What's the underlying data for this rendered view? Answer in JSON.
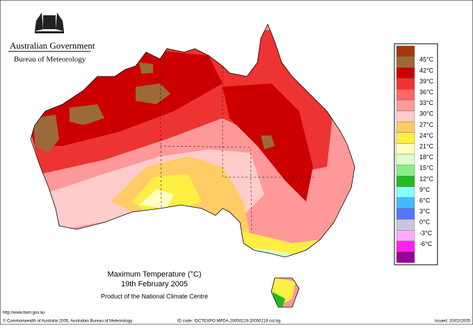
{
  "header": {
    "title": "Australian Government",
    "subtitle": "Bureau of Meteorology"
  },
  "legend": {
    "colors": [
      "#a33a0e",
      "#9c6a3a",
      "#cc0000",
      "#ee3333",
      "#ff6666",
      "#ff9999",
      "#ffcccc",
      "#ffcc66",
      "#ffee44",
      "#ffffc0",
      "#ddffcc",
      "#88ee88",
      "#22bb22",
      "#88ffff",
      "#44bbff",
      "#5577ff",
      "#c8c8d8",
      "#ffaaff",
      "#ff22ee",
      "#990099"
    ],
    "labels": [
      "45°C",
      "42°C",
      "39°C",
      "36°C",
      "33°C",
      "30°C",
      "27°C",
      "24°C",
      "21°C",
      "18°C",
      "15°C",
      "12°C",
      "9°C",
      "6°C",
      "3°C",
      "0°C",
      "-3°C",
      "-6°C"
    ]
  },
  "caption": {
    "title": "Maximum Temperature (°C)",
    "date": "19th February 2005",
    "credit": "Product of the National Climate Centre"
  },
  "footer": {
    "url": "http://www.bom.gov.au",
    "copyright": "© Commonwealth of Australia 2005, Australian Bureau of Meteorology",
    "id_code": "ID code: IDCTEXPO.MPDA.20050219.20050219.col.bg",
    "issued": "Issued: 20/02/2005"
  }
}
